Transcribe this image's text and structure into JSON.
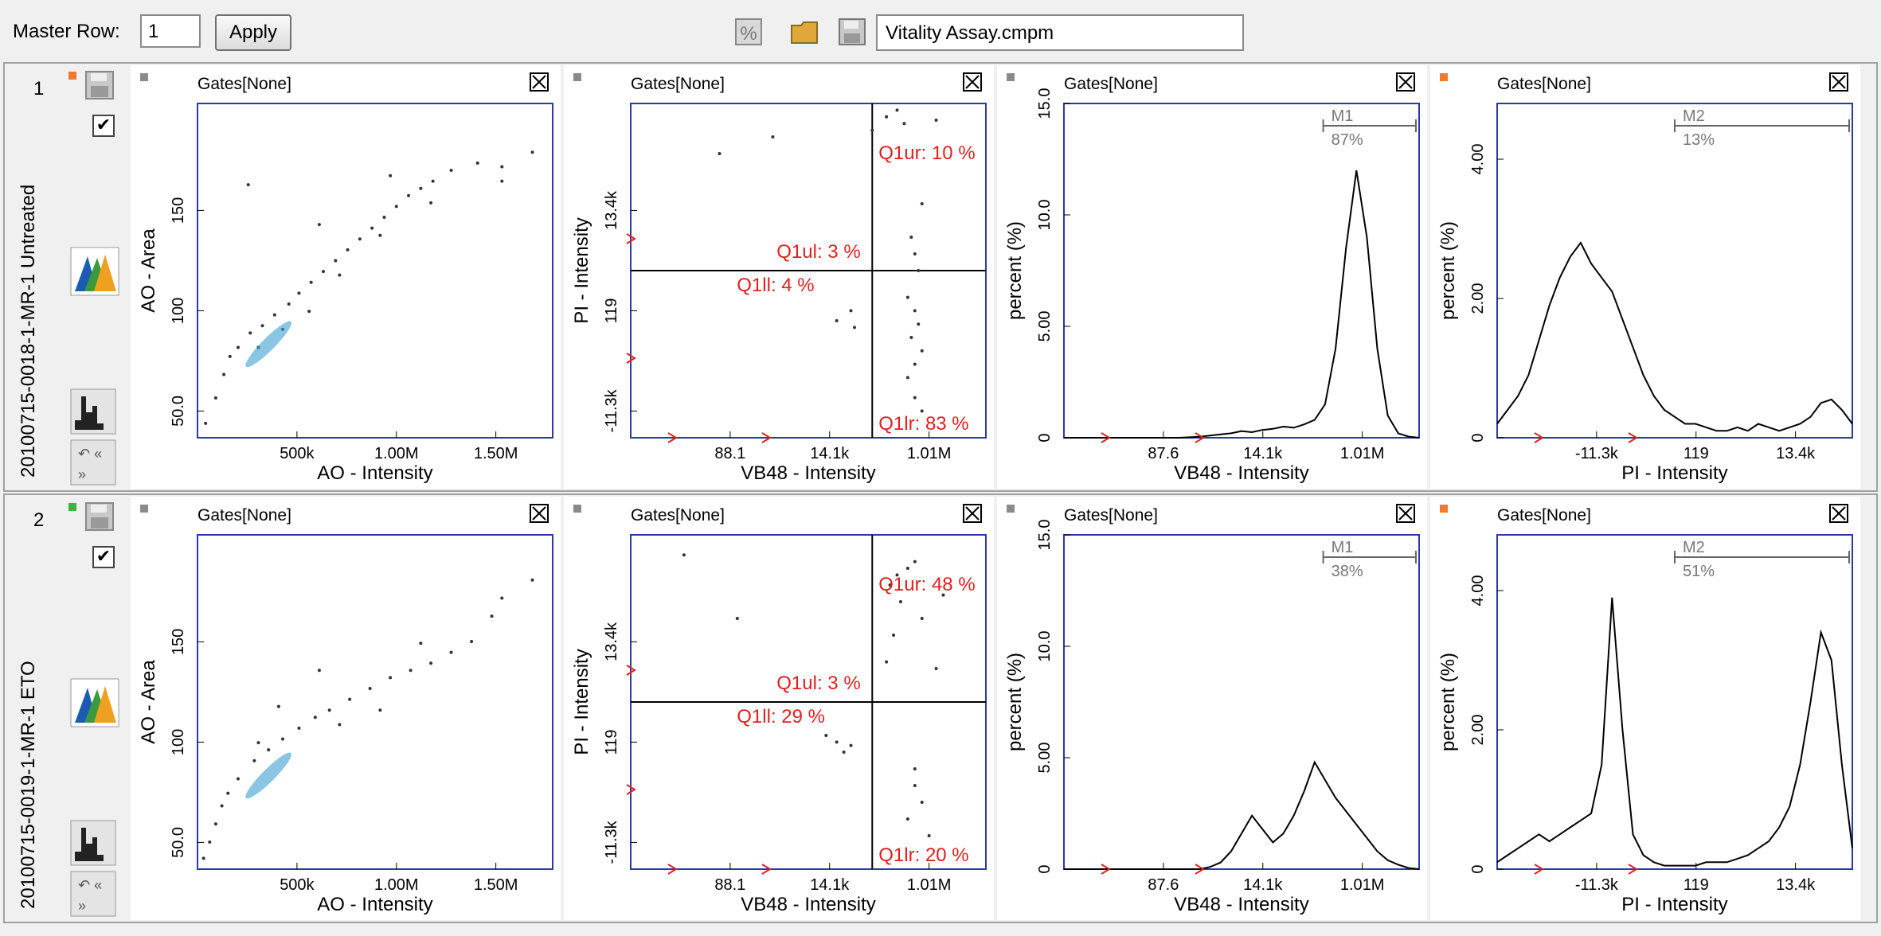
{
  "toolbar": {
    "master_row_label": "Master Row:",
    "master_row_value": "1",
    "apply_label": "Apply",
    "file_name": "Vitality Assay.cmpm",
    "icons": [
      "settings-percent-icon",
      "open-folder-icon",
      "save-icon"
    ]
  },
  "rows": [
    {
      "number": "1",
      "name": "20100715-0018-1-MR-1 Untreated",
      "checked": true,
      "status_color": "#f07a30",
      "panels": [
        {
          "chart_data": {
            "type": "scatter",
            "gate_label": "Gates[None]",
            "xlabel": "AO - Intensity",
            "ylabel": "AO - Area",
            "xticks": [
              "500k",
              "1.00M",
              "1.50M"
            ],
            "yticks": [
              "50.0",
              "100",
              "150"
            ],
            "xlim": [
              0,
              1750000
            ],
            "ylim": [
              0,
              185
            ],
            "points": [
              [
                40000,
                8
              ],
              [
                90000,
                22
              ],
              [
                130000,
                35
              ],
              [
                160000,
                45
              ],
              [
                200000,
                50
              ],
              [
                260000,
                58
              ],
              [
                320000,
                62
              ],
              [
                380000,
                68
              ],
              [
                450000,
                74
              ],
              [
                500000,
                80
              ],
              [
                560000,
                86
              ],
              [
                620000,
                92
              ],
              [
                680000,
                98
              ],
              [
                740000,
                104
              ],
              [
                800000,
                110
              ],
              [
                860000,
                116
              ],
              [
                920000,
                122
              ],
              [
                980000,
                128
              ],
              [
                1040000,
                134
              ],
              [
                1100000,
                138
              ],
              [
                1160000,
                142
              ],
              [
                1250000,
                148
              ],
              [
                1380000,
                152
              ],
              [
                1500000,
                150
              ],
              [
                1650000,
                158
              ],
              [
                1500000,
                142
              ],
              [
                1150000,
                130
              ],
              [
                900000,
                112
              ],
              [
                700000,
                90
              ],
              [
                550000,
                70
              ],
              [
                420000,
                60
              ],
              [
                300000,
                50
              ],
              [
                250000,
                140
              ],
              [
                600000,
                118
              ],
              [
                950000,
                145
              ]
            ]
          }
        },
        {
          "chart_data": {
            "type": "scatter",
            "gate_label": "Gates[None]",
            "xlabel": "VB48 - Intensity",
            "ylabel": "PI - Intensity",
            "xticks": [
              "88.1",
              "14.1k",
              "1.01M"
            ],
            "yticks": [
              "-11.3k",
              "119",
              "13.4k"
            ],
            "quadrants": [
              {
                "label": "Q1ul: 3 %"
              },
              {
                "label": "Q1ur: 10 %"
              },
              {
                "label": "Q1ll: 4 %"
              },
              {
                "label": "Q1lr: 83 %"
              }
            ],
            "points": [
              [
                0.82,
                0.08
              ],
              [
                0.8,
                0.12
              ],
              [
                0.78,
                0.18
              ],
              [
                0.8,
                0.22
              ],
              [
                0.82,
                0.26
              ],
              [
                0.79,
                0.3
              ],
              [
                0.81,
                0.34
              ],
              [
                0.8,
                0.38
              ],
              [
                0.78,
                0.42
              ],
              [
                0.81,
                0.5
              ],
              [
                0.8,
                0.55
              ],
              [
                0.79,
                0.6
              ],
              [
                0.82,
                0.7
              ],
              [
                0.77,
                0.94
              ],
              [
                0.72,
                0.96
              ],
              [
                0.68,
                0.92
              ],
              [
                0.75,
                0.98
              ],
              [
                0.62,
                0.38
              ],
              [
                0.58,
                0.35
              ],
              [
                0.63,
                0.33
              ],
              [
                0.25,
                0.85
              ],
              [
                0.4,
                0.9
              ],
              [
                0.86,
                0.95
              ]
            ]
          }
        },
        {
          "chart_data": {
            "type": "line",
            "gate_label": "Gates[None]",
            "xlabel": "VB48 - Intensity",
            "ylabel": "percent (%)",
            "xticks": [
              "87.6",
              "14.1k",
              "1.01M"
            ],
            "yticks": [
              "0",
              "5.00",
              "10.0",
              "15.0"
            ],
            "ylim": [
              0,
              15
            ],
            "marker": {
              "name": "M1",
              "value": "87%"
            },
            "series": [
              {
                "values": [
                  0,
                  0,
                  0,
                  0,
                  0,
                  0,
                  0,
                  0,
                  0,
                  0,
                  0,
                  0,
                  0.02,
                  0.05,
                  0.1,
                  0.15,
                  0.2,
                  0.3,
                  0.25,
                  0.35,
                  0.4,
                  0.5,
                  0.45,
                  0.6,
                  0.8,
                  1.5,
                  4.0,
                  8.5,
                  12.0,
                  9.0,
                  4.0,
                  1.0,
                  0.2,
                  0.05,
                  0
                ]
              }
            ]
          }
        },
        {
          "chart_data": {
            "type": "line",
            "gate_label": "Gates[None]",
            "xlabel": "PI - Intensity",
            "ylabel": "percent (%)",
            "xticks": [
              "-11.3k",
              "119",
              "13.4k"
            ],
            "yticks": [
              "0",
              "2.00",
              "4.00"
            ],
            "ylim": [
              0,
              4.8
            ],
            "marker": {
              "name": "M2",
              "value": "13%"
            },
            "series": [
              {
                "values": [
                  0.2,
                  0.4,
                  0.6,
                  0.9,
                  1.4,
                  1.9,
                  2.3,
                  2.6,
                  2.8,
                  2.5,
                  2.3,
                  2.1,
                  1.7,
                  1.3,
                  0.9,
                  0.6,
                  0.4,
                  0.3,
                  0.2,
                  0.2,
                  0.15,
                  0.1,
                  0.1,
                  0.15,
                  0.1,
                  0.2,
                  0.15,
                  0.1,
                  0.15,
                  0.2,
                  0.3,
                  0.5,
                  0.55,
                  0.4,
                  0.2
                ]
              }
            ]
          }
        }
      ]
    },
    {
      "number": "2",
      "name": "20100715-0019-1-MR-1 ETO",
      "checked": true,
      "status_color": "#3cb43c",
      "panels": [
        {
          "chart_data": {
            "type": "scatter",
            "gate_label": "Gates[None]",
            "xlabel": "AO - Intensity",
            "ylabel": "AO - Area",
            "xticks": [
              "500k",
              "1.00M",
              "1.50M"
            ],
            "yticks": [
              "50.0",
              "100",
              "150"
            ],
            "xlim": [
              0,
              1750000
            ],
            "ylim": [
              0,
              185
            ],
            "points": [
              [
                30000,
                6
              ],
              [
                60000,
                15
              ],
              [
                90000,
                25
              ],
              [
                120000,
                35
              ],
              [
                150000,
                42
              ],
              [
                200000,
                50
              ],
              [
                280000,
                60
              ],
              [
                350000,
                66
              ],
              [
                420000,
                72
              ],
              [
                500000,
                78
              ],
              [
                580000,
                84
              ],
              [
                650000,
                88
              ],
              [
                750000,
                94
              ],
              [
                850000,
                100
              ],
              [
                950000,
                106
              ],
              [
                1050000,
                110
              ],
              [
                1150000,
                114
              ],
              [
                1250000,
                120
              ],
              [
                1350000,
                126
              ],
              [
                1450000,
                140
              ],
              [
                1500000,
                150
              ],
              [
                1650000,
                160
              ],
              [
                1100000,
                125
              ],
              [
                900000,
                88
              ],
              [
                700000,
                80
              ],
              [
                400000,
                90
              ],
              [
                300000,
                70
              ],
              [
                600000,
                110
              ]
            ]
          }
        },
        {
          "chart_data": {
            "type": "scatter",
            "gate_label": "Gates[None]",
            "xlabel": "VB48 - Intensity",
            "ylabel": "PI - Intensity",
            "xticks": [
              "88.1",
              "14.1k",
              "1.01M"
            ],
            "yticks": [
              "-11.3k",
              "119",
              "13.4k"
            ],
            "quadrants": [
              {
                "label": "Q1ul: 3 %"
              },
              {
                "label": "Q1ur: 48 %"
              },
              {
                "label": "Q1ll: 29 %"
              },
              {
                "label": "Q1lr: 20 %"
              }
            ],
            "points": [
              [
                0.75,
                0.88
              ],
              [
                0.78,
                0.9
              ],
              [
                0.73,
                0.85
              ],
              [
                0.8,
                0.92
              ],
              [
                0.76,
                0.8
              ],
              [
                0.82,
                0.75
              ],
              [
                0.74,
                0.7
              ],
              [
                0.72,
                0.62
              ],
              [
                0.58,
                0.38
              ],
              [
                0.62,
                0.37
              ],
              [
                0.55,
                0.4
              ],
              [
                0.6,
                0.35
              ],
              [
                0.8,
                0.3
              ],
              [
                0.82,
                0.2
              ],
              [
                0.78,
                0.15
              ],
              [
                0.84,
                0.1
              ],
              [
                0.8,
                0.25
              ],
              [
                0.15,
                0.94
              ],
              [
                0.3,
                0.75
              ],
              [
                0.86,
                0.6
              ],
              [
                0.88,
                0.82
              ]
            ]
          }
        },
        {
          "chart_data": {
            "type": "line",
            "gate_label": "Gates[None]",
            "xlabel": "VB48 - Intensity",
            "ylabel": "percent (%)",
            "xticks": [
              "87.6",
              "14.1k",
              "1.01M"
            ],
            "yticks": [
              "0",
              "5.00",
              "10.0",
              "15.0"
            ],
            "ylim": [
              0,
              15
            ],
            "marker": {
              "name": "M1",
              "value": "38%"
            },
            "series": [
              {
                "values": [
                  0,
                  0,
                  0,
                  0,
                  0,
                  0,
                  0,
                  0,
                  0,
                  0,
                  0,
                  0,
                  0,
                  0,
                  0.1,
                  0.3,
                  0.8,
                  1.6,
                  2.4,
                  1.8,
                  1.2,
                  1.6,
                  2.4,
                  3.5,
                  4.8,
                  4.0,
                  3.2,
                  2.6,
                  2.0,
                  1.4,
                  0.8,
                  0.4,
                  0.2,
                  0.05,
                  0
                ]
              }
            ]
          }
        },
        {
          "chart_data": {
            "type": "line",
            "gate_label": "Gates[None]",
            "xlabel": "PI - Intensity",
            "ylabel": "percent (%)",
            "xticks": [
              "-11.3k",
              "119",
              "13.4k"
            ],
            "yticks": [
              "0",
              "2.00",
              "4.00"
            ],
            "ylim": [
              0,
              4.8
            ],
            "marker": {
              "name": "M2",
              "value": "51%"
            },
            "series": [
              {
                "values": [
                  0.1,
                  0.2,
                  0.3,
                  0.4,
                  0.5,
                  0.4,
                  0.5,
                  0.6,
                  0.7,
                  0.8,
                  1.5,
                  3.9,
                  2.0,
                  0.5,
                  0.2,
                  0.1,
                  0.05,
                  0.05,
                  0.05,
                  0.05,
                  0.1,
                  0.1,
                  0.1,
                  0.15,
                  0.2,
                  0.3,
                  0.4,
                  0.6,
                  0.9,
                  1.5,
                  2.4,
                  3.4,
                  3.0,
                  1.5,
                  0.3
                ]
              }
            ]
          }
        }
      ]
    }
  ]
}
